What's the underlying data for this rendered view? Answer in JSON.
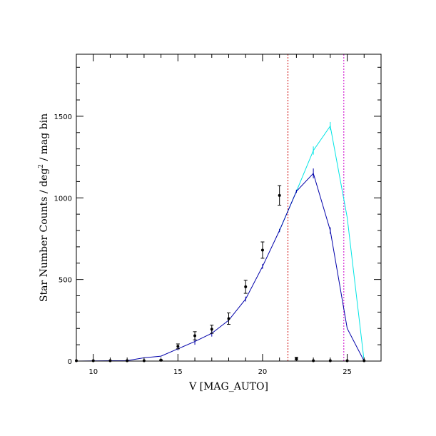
{
  "chart_data": {
    "type": "line",
    "xlabel": "V [MAG_AUTO]",
    "ylabel_main": "Star Number Counts / deg",
    "ylabel_sup": "2",
    "ylabel_tail": " / mag bin",
    "xlim": [
      9,
      27
    ],
    "ylim": [
      0,
      1880
    ],
    "x_ticks": [
      10,
      15,
      20,
      25
    ],
    "y_ticks": [
      0,
      500,
      1000,
      1500
    ],
    "x_ticks_minor_step": 1,
    "y_ticks_minor_step": 100,
    "grid": false,
    "vlines": [
      {
        "x": 21.5,
        "color": "#cc0000"
      },
      {
        "x": 24.8,
        "color": "#cc00cc"
      }
    ],
    "series": [
      {
        "style": "line",
        "color": "#00e5e5",
        "x": [
          21,
          22,
          23,
          24,
          25,
          26
        ],
        "y": [
          800,
          1040,
          1290,
          1440,
          880,
          0
        ],
        "err": [
          10,
          10,
          25,
          25,
          0,
          0
        ]
      },
      {
        "style": "line",
        "color": "#0000aa",
        "x": [
          9,
          10,
          11,
          12,
          13,
          14,
          15,
          16,
          17,
          18,
          19,
          20,
          21,
          22,
          23,
          24,
          25,
          26
        ],
        "y": [
          0,
          1,
          2,
          3,
          20,
          30,
          75,
          120,
          170,
          250,
          380,
          580,
          800,
          1040,
          1150,
          800,
          200,
          0
        ],
        "err": [
          0,
          0,
          0,
          0,
          0,
          0,
          10,
          20,
          20,
          20,
          15,
          15,
          10,
          10,
          30,
          20,
          0,
          0
        ]
      },
      {
        "style": "points",
        "color": "#000000",
        "x": [
          9,
          10,
          11,
          12,
          13,
          14,
          15,
          16,
          17,
          18,
          19,
          20,
          21,
          22,
          23,
          24,
          25,
          26
        ],
        "y": [
          2,
          2,
          2,
          2,
          2,
          5,
          90,
          155,
          195,
          260,
          455,
          680,
          1015,
          15,
          2,
          2,
          2,
          2
        ],
        "err": [
          0,
          0,
          0,
          0,
          0,
          3,
          15,
          25,
          25,
          35,
          40,
          50,
          60,
          8,
          0,
          0,
          0,
          0
        ]
      }
    ]
  }
}
